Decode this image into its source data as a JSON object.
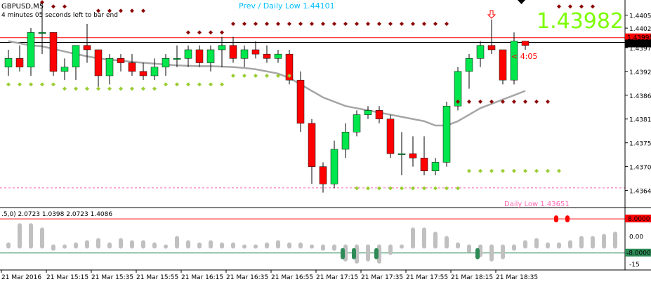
{
  "header": {
    "symbol": "GBPUSD,M5",
    "bar_timer": "4 minutes 05 seconds left to bar end",
    "prev_daily_low": "Prev / Daily Low 1.44101",
    "big_price": "1.43982",
    "countdown": "< 4:05",
    "daily_low_label": "Daily Low 1.43651"
  },
  "colors": {
    "bull": "#00e64d",
    "bear": "#ff0000",
    "ma": "#a6a6a6",
    "dot_high": "#8b0000",
    "dot_low": "#9acd32",
    "big_price": "#7cfc00",
    "info_text": "#00bfff",
    "daily_low_line": "#ff69b4",
    "osc_bar": "#c0c0c0",
    "osc_up": "#ff0000",
    "osc_down": "#2e8b57",
    "arrow": "#ff0000"
  },
  "price_axis": {
    "range": [
      1.4362,
      1.44085
    ],
    "ticks": [
      "1.44050",
      "1.44020",
      "1.43975",
      "1.43920",
      "1.43865",
      "1.43810",
      "1.43755",
      "1.43700",
      "1.43645"
    ],
    "tick_values": [
      1.4405,
      1.4402,
      1.43975,
      1.4392,
      1.43865,
      1.4381,
      1.43755,
      1.437,
      1.43645
    ],
    "badge_red": "1.43998",
    "badge_black": "1.43987",
    "line_red_value": 1.43998,
    "line_black_value": 1.43987,
    "daily_low_value": 1.43651
  },
  "osc": {
    "header": ".5,0) 2.0723 1.0398 2.0723 1.4086",
    "range": [
      -15,
      12
    ],
    "ticks": [
      "8.0000",
      "0.00",
      "-8.0000",
      "-15"
    ],
    "upper_level": 8,
    "lower_level": -8,
    "values": [
      -4,
      5,
      5,
      3,
      -6,
      -5,
      -4,
      -3,
      -2,
      -4,
      -2,
      -3,
      -3,
      -4,
      -5,
      -1,
      -3,
      -4,
      -3,
      -4,
      -4,
      -5,
      -5,
      -4,
      -3,
      -4,
      -4,
      -5,
      -6,
      -6,
      -11,
      -12,
      -11,
      -12,
      -8,
      -5,
      3,
      3,
      1,
      -1,
      -4,
      -7,
      -9,
      -11,
      -10,
      -6,
      -3,
      -2,
      -4,
      -4,
      -3,
      -1,
      -1,
      0,
      1,
      1,
      -2,
      -2,
      -3
    ],
    "signal_up_index": [
      49,
      50
    ],
    "signal_down_index": [
      30,
      31,
      33,
      42
    ]
  },
  "time_axis": [
    "21 Mar 2016",
    "21 Mar 15:15",
    "21 Mar 15:35",
    "21 Mar 15:55",
    "21 Mar 16:15",
    "21 Mar 16:35",
    "21 Mar 16:55",
    "21 Mar 17:15",
    "21 Mar 17:35",
    "21 Mar 17:55",
    "21 Mar 18:15",
    "21 Mar 18:35"
  ],
  "chart_data": {
    "type": "candlestick",
    "title": "GBPUSD,M5",
    "candles": [
      {
        "o": 1.4393,
        "h": 1.4397,
        "l": 1.4391,
        "c": 1.4395
      },
      {
        "o": 1.4395,
        "h": 1.4398,
        "l": 1.4392,
        "c": 1.4393
      },
      {
        "o": 1.4393,
        "h": 1.4402,
        "l": 1.4391,
        "c": 1.4401
      },
      {
        "o": 1.4401,
        "h": 1.4408,
        "l": 1.4396,
        "c": 1.4401
      },
      {
        "o": 1.4401,
        "h": 1.4401,
        "l": 1.4391,
        "c": 1.4392
      },
      {
        "o": 1.4392,
        "h": 1.4395,
        "l": 1.439,
        "c": 1.4393
      },
      {
        "o": 1.4393,
        "h": 1.4398,
        "l": 1.439,
        "c": 1.4398
      },
      {
        "o": 1.4398,
        "h": 1.4403,
        "l": 1.4394,
        "c": 1.4397
      },
      {
        "o": 1.4397,
        "h": 1.4397,
        "l": 1.4388,
        "c": 1.4391
      },
      {
        "o": 1.4391,
        "h": 1.4396,
        "l": 1.4389,
        "c": 1.4395
      },
      {
        "o": 1.4395,
        "h": 1.4396,
        "l": 1.4392,
        "c": 1.4394
      },
      {
        "o": 1.4394,
        "h": 1.4396,
        "l": 1.4391,
        "c": 1.4392
      },
      {
        "o": 1.4392,
        "h": 1.4394,
        "l": 1.439,
        "c": 1.4391
      },
      {
        "o": 1.4391,
        "h": 1.4395,
        "l": 1.439,
        "c": 1.4393
      },
      {
        "o": 1.4393,
        "h": 1.4396,
        "l": 1.4391,
        "c": 1.4395
      },
      {
        "o": 1.4395,
        "h": 1.4398,
        "l": 1.4393,
        "c": 1.4395
      },
      {
        "o": 1.4395,
        "h": 1.4398,
        "l": 1.4393,
        "c": 1.4397
      },
      {
        "o": 1.4397,
        "h": 1.4398,
        "l": 1.4393,
        "c": 1.4394
      },
      {
        "o": 1.4394,
        "h": 1.4398,
        "l": 1.4392,
        "c": 1.4397
      },
      {
        "o": 1.4397,
        "h": 1.44,
        "l": 1.4393,
        "c": 1.4398
      },
      {
        "o": 1.4398,
        "h": 1.44,
        "l": 1.4394,
        "c": 1.4395
      },
      {
        "o": 1.4395,
        "h": 1.4398,
        "l": 1.4393,
        "c": 1.4397
      },
      {
        "o": 1.4397,
        "h": 1.4399,
        "l": 1.4395,
        "c": 1.4396
      },
      {
        "o": 1.4396,
        "h": 1.4398,
        "l": 1.4394,
        "c": 1.4395
      },
      {
        "o": 1.4395,
        "h": 1.4397,
        "l": 1.4394,
        "c": 1.4396
      },
      {
        "o": 1.4396,
        "h": 1.4397,
        "l": 1.4389,
        "c": 1.439
      },
      {
        "o": 1.439,
        "h": 1.4392,
        "l": 1.4378,
        "c": 1.438
      },
      {
        "o": 1.438,
        "h": 1.4381,
        "l": 1.4366,
        "c": 1.437
      },
      {
        "o": 1.437,
        "h": 1.4371,
        "l": 1.4364,
        "c": 1.4366
      },
      {
        "o": 1.4366,
        "h": 1.4376,
        "l": 1.4365,
        "c": 1.4374
      },
      {
        "o": 1.4374,
        "h": 1.438,
        "l": 1.4372,
        "c": 1.4378
      },
      {
        "o": 1.4378,
        "h": 1.4383,
        "l": 1.4377,
        "c": 1.4382
      },
      {
        "o": 1.4382,
        "h": 1.4384,
        "l": 1.4381,
        "c": 1.4383
      },
      {
        "o": 1.4383,
        "h": 1.4384,
        "l": 1.438,
        "c": 1.4381
      },
      {
        "o": 1.4381,
        "h": 1.4382,
        "l": 1.4372,
        "c": 1.4373
      },
      {
        "o": 1.4373,
        "h": 1.4378,
        "l": 1.4368,
        "c": 1.4373
      },
      {
        "o": 1.4373,
        "h": 1.4377,
        "l": 1.437,
        "c": 1.4372
      },
      {
        "o": 1.4372,
        "h": 1.4377,
        "l": 1.4368,
        "c": 1.4369
      },
      {
        "o": 1.4369,
        "h": 1.4372,
        "l": 1.4368,
        "c": 1.4371
      },
      {
        "o": 1.4371,
        "h": 1.4385,
        "l": 1.437,
        "c": 1.4384
      },
      {
        "o": 1.4384,
        "h": 1.4393,
        "l": 1.4383,
        "c": 1.4392
      },
      {
        "o": 1.4392,
        "h": 1.4396,
        "l": 1.4388,
        "c": 1.4395
      },
      {
        "o": 1.4395,
        "h": 1.4399,
        "l": 1.4393,
        "c": 1.4398
      },
      {
        "o": 1.4398,
        "h": 1.4404,
        "l": 1.4396,
        "c": 1.4397
      },
      {
        "o": 1.4397,
        "h": 1.4397,
        "l": 1.4389,
        "c": 1.439
      },
      {
        "o": 1.439,
        "h": 1.4401,
        "l": 1.4389,
        "c": 1.4399
      },
      {
        "o": 1.4399,
        "h": 1.4399,
        "l": 1.4397,
        "c": 1.4398
      }
    ],
    "ma": [
      1.4399,
      1.43985,
      1.4398,
      1.43978,
      1.43972,
      1.43966,
      1.4396,
      1.43955,
      1.4395,
      1.43947,
      1.43945,
      1.43942,
      1.4394,
      1.43938,
      1.43936,
      1.43934,
      1.43933,
      1.43932,
      1.43932,
      1.43931,
      1.4393,
      1.43928,
      1.43925,
      1.4392,
      1.43915,
      1.43905,
      1.4389,
      1.43875,
      1.4386,
      1.4385,
      1.4384,
      1.43835,
      1.4383,
      1.43825,
      1.4382,
      1.43815,
      1.4381,
      1.43805,
      1.43795,
      1.43795,
      1.43805,
      1.4382,
      1.43835,
      1.43845,
      1.43855,
      1.43865,
      1.43875
    ],
    "dots_high": [
      [
        3,
        1.4408
      ],
      [
        4,
        1.4407
      ],
      [
        5,
        1.4407
      ],
      [
        8,
        1.4406
      ],
      [
        9,
        1.4406
      ],
      [
        10,
        1.4406
      ],
      [
        11,
        1.4406
      ],
      [
        12,
        1.4406
      ],
      [
        16,
        1.4401
      ],
      [
        17,
        1.4401
      ],
      [
        18,
        1.4401
      ],
      [
        19,
        1.4401
      ],
      [
        20,
        1.4403
      ],
      [
        21,
        1.4403
      ],
      [
        22,
        1.4403
      ],
      [
        23,
        1.4403
      ],
      [
        24,
        1.4403
      ],
      [
        25,
        1.4403
      ],
      [
        26,
        1.4403
      ],
      [
        27,
        1.4403
      ],
      [
        28,
        1.4403
      ],
      [
        29,
        1.4403
      ],
      [
        30,
        1.4403
      ],
      [
        31,
        1.4403
      ],
      [
        32,
        1.4403
      ],
      [
        33,
        1.4403
      ],
      [
        34,
        1.4403
      ],
      [
        35,
        1.4403
      ],
      [
        36,
        1.4403
      ],
      [
        37,
        1.4403
      ],
      [
        38,
        1.4403
      ],
      [
        39,
        1.4403
      ],
      [
        40,
        1.4385
      ],
      [
        41,
        1.4385
      ],
      [
        42,
        1.4385
      ],
      [
        43,
        1.4385
      ],
      [
        44,
        1.4385
      ],
      [
        45,
        1.4385
      ],
      [
        46,
        1.4385
      ],
      [
        47,
        1.4385
      ],
      [
        48,
        1.4385
      ],
      [
        49,
        1.4407
      ],
      [
        50,
        1.4407
      ],
      [
        51,
        1.4407
      ],
      [
        52,
        1.4407
      ]
    ],
    "dots_low": [
      [
        0,
        1.4389
      ],
      [
        1,
        1.4389
      ],
      [
        2,
        1.4389
      ],
      [
        3,
        1.4389
      ],
      [
        4,
        1.4389
      ],
      [
        5,
        1.4388
      ],
      [
        6,
        1.4388
      ],
      [
        7,
        1.4388
      ],
      [
        8,
        1.4388
      ],
      [
        9,
        1.4388
      ],
      [
        10,
        1.4388
      ],
      [
        11,
        1.4388
      ],
      [
        12,
        1.4388
      ],
      [
        13,
        1.4388
      ],
      [
        14,
        1.4389
      ],
      [
        15,
        1.4389
      ],
      [
        16,
        1.4389
      ],
      [
        17,
        1.4389
      ],
      [
        18,
        1.4389
      ],
      [
        19,
        1.4389
      ],
      [
        20,
        1.4391
      ],
      [
        21,
        1.4391
      ],
      [
        22,
        1.4391
      ],
      [
        23,
        1.4391
      ],
      [
        24,
        1.4391
      ],
      [
        25,
        1.4391
      ],
      [
        31,
        1.4365
      ],
      [
        32,
        1.4365
      ],
      [
        33,
        1.4365
      ],
      [
        34,
        1.4365
      ],
      [
        35,
        1.4365
      ],
      [
        36,
        1.4365
      ],
      [
        37,
        1.4365
      ],
      [
        38,
        1.4365
      ],
      [
        39,
        1.4365
      ],
      [
        40,
        1.4365
      ],
      [
        41,
        1.4369
      ],
      [
        42,
        1.4369
      ],
      [
        43,
        1.4369
      ],
      [
        44,
        1.4369
      ],
      [
        45,
        1.4369
      ],
      [
        46,
        1.4369
      ],
      [
        47,
        1.4369
      ],
      [
        48,
        1.4369
      ],
      [
        49,
        1.4369
      ]
    ],
    "arrow_index": 43
  }
}
